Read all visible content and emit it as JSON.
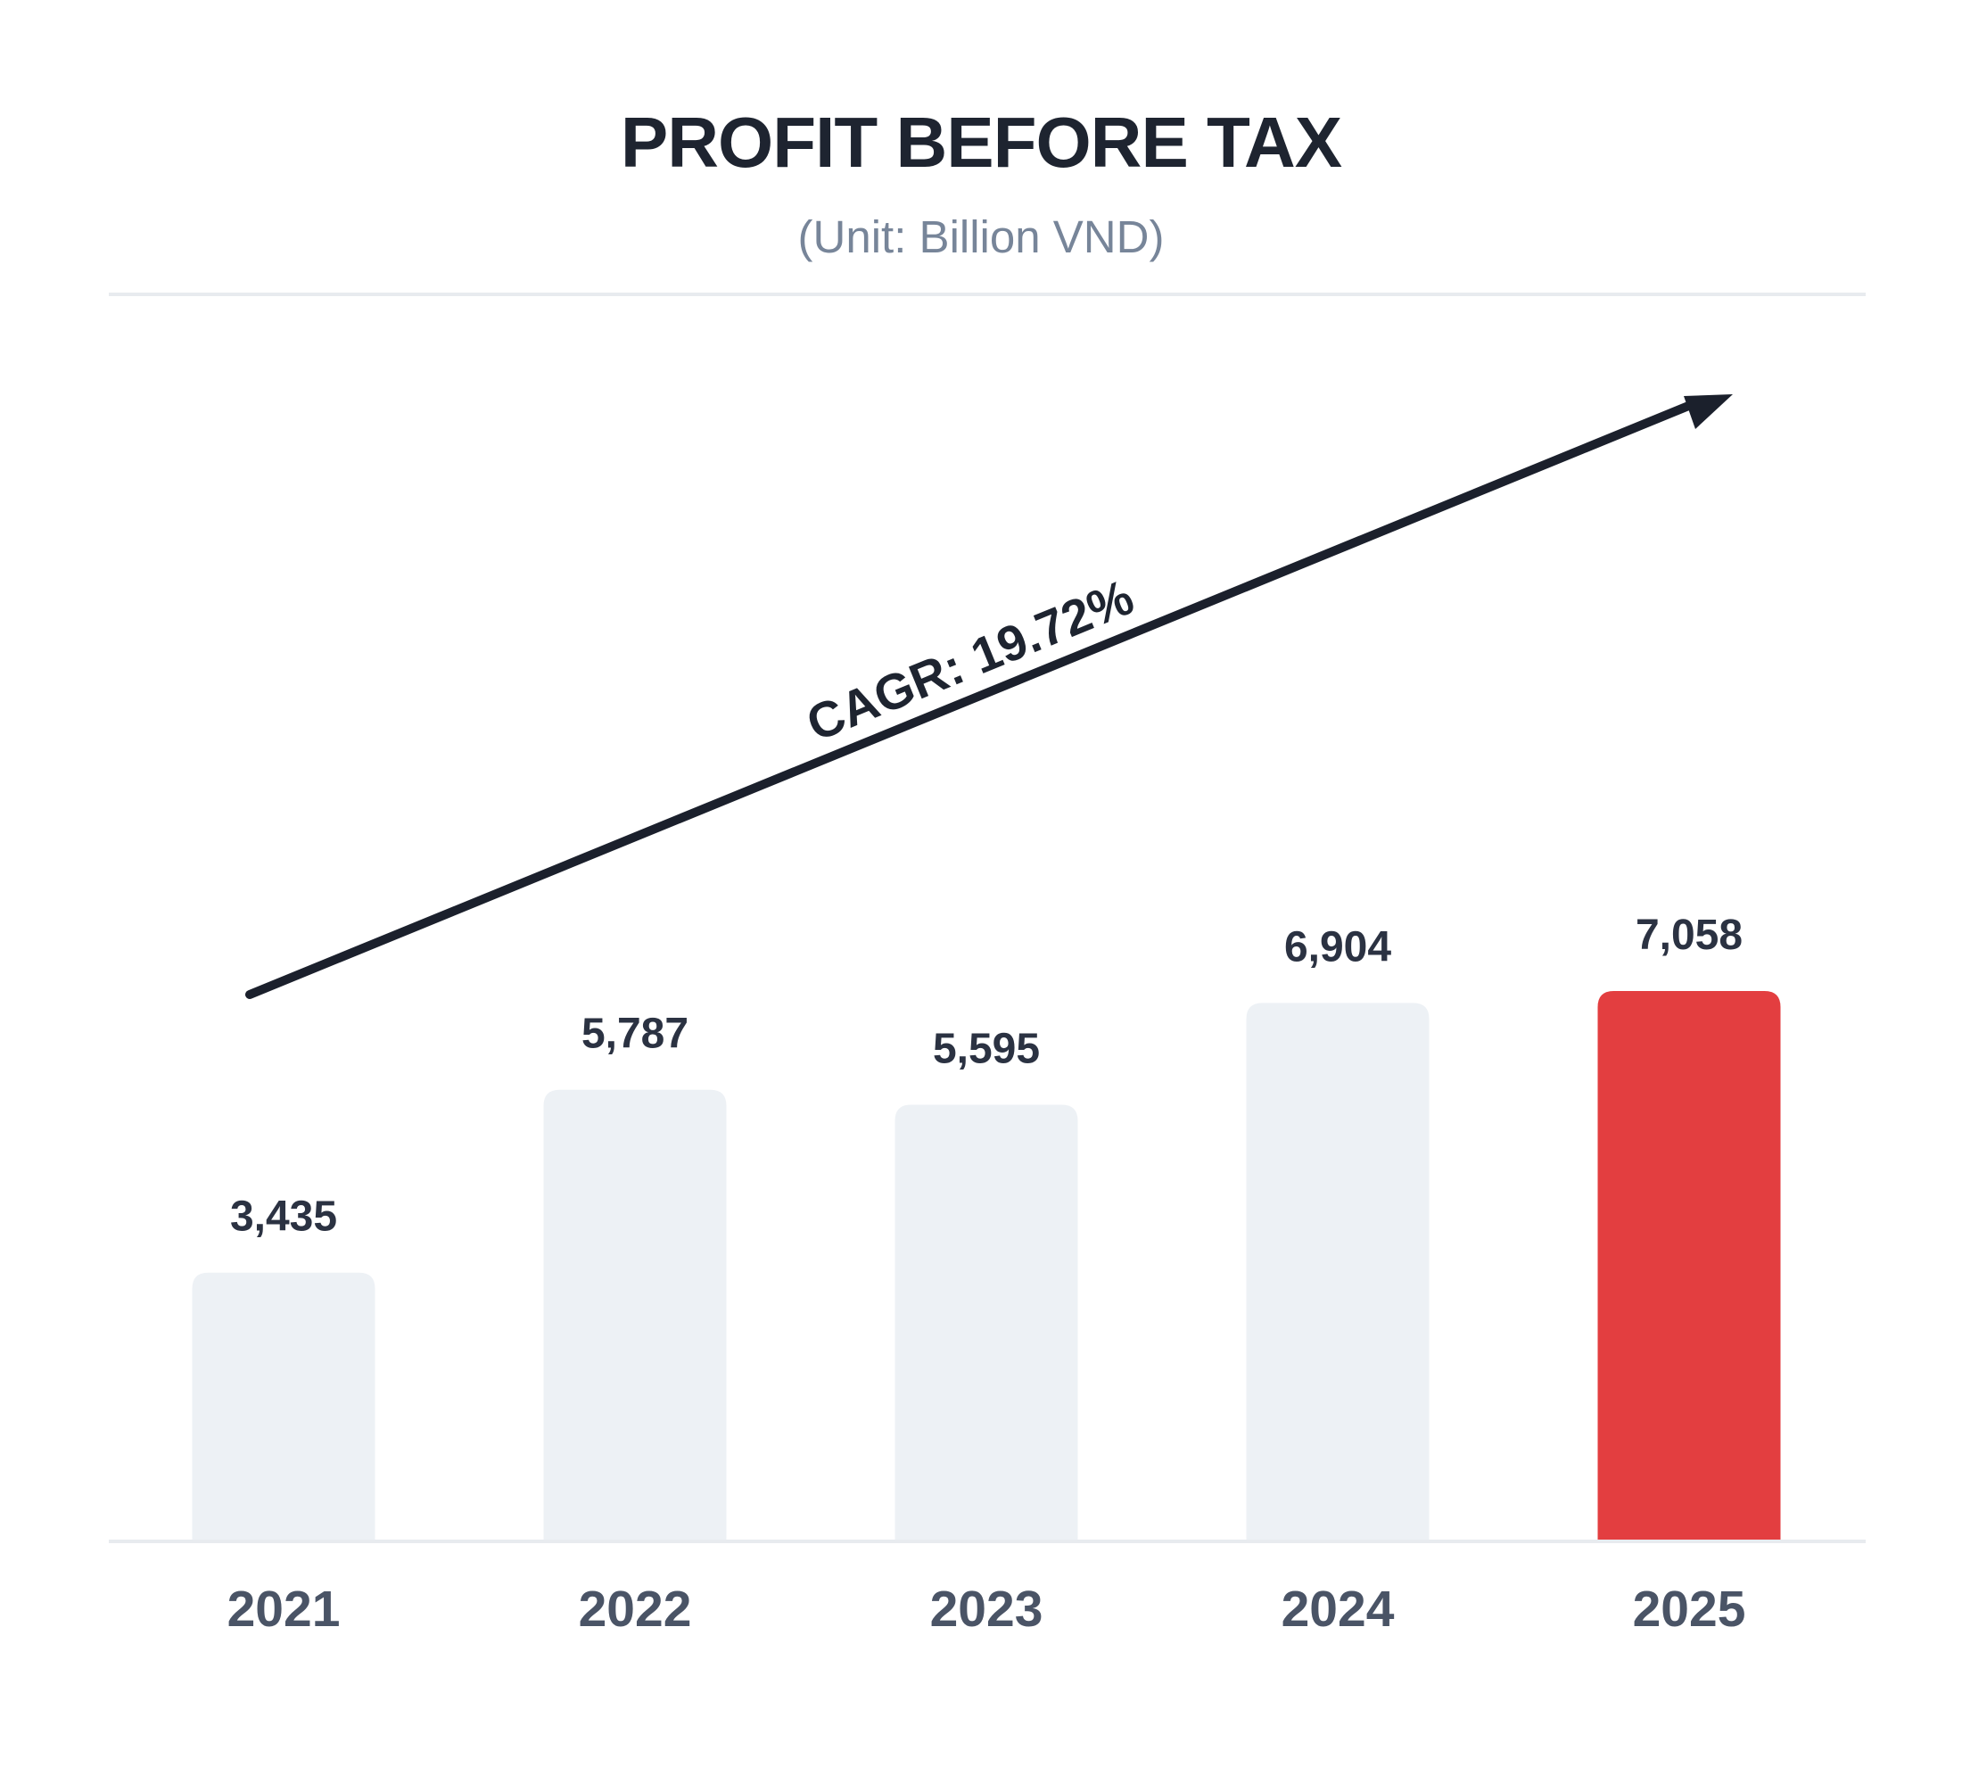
{
  "header": {
    "title": "PROFIT BEFORE TAX",
    "subtitle": "(Unit: Billion VND)"
  },
  "colors": {
    "bar_default": "#edf1f5",
    "bar_highlight": "#e33e40",
    "rule": "#e8ebef",
    "arrow": "#1b202c",
    "value_text": "#2b3242",
    "year_text": "#4a5466"
  },
  "chart_data": {
    "type": "bar",
    "title": "PROFIT BEFORE TAX",
    "subtitle": "(Unit: Billion VND)",
    "xlabel": "",
    "ylabel": "",
    "categories": [
      "2021",
      "2022",
      "2023",
      "2024",
      "2025"
    ],
    "values": [
      3435,
      5787,
      5595,
      6904,
      7058
    ],
    "value_labels": [
      "3,435",
      "5,787",
      "5,595",
      "6,904",
      "7,058"
    ],
    "highlight_index": 4,
    "annotation": "CAGR: 19.72%",
    "grid": false,
    "legend": "none"
  }
}
